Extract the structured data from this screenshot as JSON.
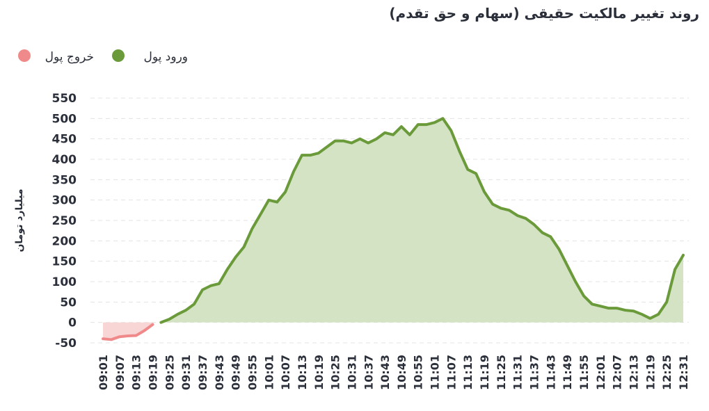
{
  "chart_data": {
    "type": "area",
    "title": "روند تغییر مالکیت حقیقی (سهام و حق تقدم)",
    "y_label": "میلیارد تومان",
    "categories": [
      "09:01",
      null,
      "09:07",
      null,
      "09:13",
      null,
      "09:19",
      null,
      "09:25",
      null,
      "09:31",
      null,
      "09:37",
      null,
      "09:43",
      null,
      "09:49",
      null,
      "09:55",
      null,
      "10:01",
      null,
      "10:07",
      null,
      "10:13",
      null,
      "10:19",
      null,
      "10:25",
      null,
      "10:31",
      null,
      "10:37",
      null,
      "10:43",
      null,
      "10:49",
      null,
      "10:55",
      null,
      "11:01",
      null,
      "11:07",
      null,
      "11:13",
      null,
      "11:19",
      null,
      "11:25",
      null,
      "11:31",
      null,
      "11:37",
      null,
      "11:43",
      null,
      "11:49",
      null,
      "11:55",
      null,
      "12:01",
      null,
      "12:07",
      null,
      "12:13",
      null,
      "12:19",
      null,
      "12:25",
      null,
      "12:31"
    ],
    "series": [
      {
        "name": "ورود پول",
        "color": "#6a9a3a",
        "fill": "#d3e3c4",
        "values": [
          null,
          null,
          null,
          null,
          null,
          null,
          null,
          0,
          8,
          20,
          30,
          45,
          80,
          90,
          95,
          130,
          160,
          185,
          230,
          265,
          300,
          295,
          320,
          370,
          410,
          410,
          415,
          430,
          445,
          445,
          440,
          450,
          440,
          450,
          465,
          460,
          480,
          460,
          485,
          485,
          490,
          500,
          470,
          420,
          375,
          365,
          320,
          290,
          280,
          275,
          262,
          255,
          240,
          220,
          210,
          180,
          140,
          100,
          65,
          45,
          40,
          35,
          35,
          30,
          28,
          20,
          10,
          20,
          50,
          130,
          165
        ]
      },
      {
        "name": "خروج پول",
        "color": "#f08a8a",
        "fill": "#f8d6d6",
        "values": [
          -40,
          -42,
          -35,
          -33,
          -32,
          -20,
          -5,
          null,
          null,
          null,
          null,
          null,
          null,
          null,
          null,
          null,
          null,
          null,
          null,
          null,
          null,
          null,
          null,
          null,
          null,
          null,
          null,
          null,
          null,
          null,
          null,
          null,
          null,
          null,
          null,
          null,
          null,
          null,
          null,
          null,
          null,
          null,
          null,
          null,
          null,
          null,
          null,
          null,
          null,
          null,
          null,
          null,
          null,
          null,
          null,
          null,
          null,
          null,
          null,
          null,
          null,
          null,
          null,
          null,
          null,
          null,
          null,
          null,
          null,
          null,
          null
        ]
      }
    ],
    "ylim": [
      -50,
      550
    ],
    "yticks": [
      -50,
      0,
      50,
      100,
      150,
      200,
      250,
      300,
      350,
      400,
      450,
      500,
      550
    ],
    "grid": true
  }
}
